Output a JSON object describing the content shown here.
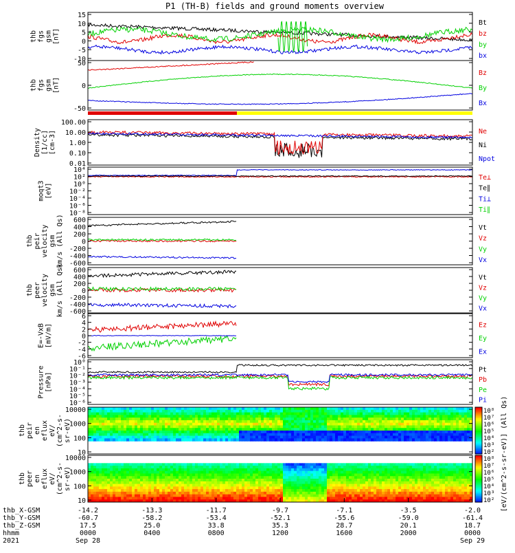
{
  "title": "P1 (TH-B) fields and ground moments overview",
  "colors": {
    "black": "#000000",
    "red": "#e00000",
    "green": "#00d000",
    "blue": "#0000e0",
    "yellow": "#ffff00"
  },
  "chart_data": [
    {
      "type": "line",
      "name": "fgs",
      "ylabel": [
        "thb",
        "fgs",
        "gsm",
        "[nT]"
      ],
      "ticks": [
        "15",
        "10",
        "5",
        "0",
        "-5",
        "-10"
      ],
      "ylim": [
        -10,
        15
      ],
      "legend": [
        {
          "label": "Bt",
          "color": "black"
        },
        {
          "label": "bz",
          "color": "red"
        },
        {
          "label": "by",
          "color": "green"
        },
        {
          "label": "bx",
          "color": "blue"
        }
      ]
    },
    {
      "type": "line",
      "name": "fgs-smooth",
      "ylabel": [
        "thb",
        "fgs",
        "gsm",
        "[nT]"
      ],
      "ticks": [
        "50",
        "0",
        "-50"
      ],
      "ylim": [
        -75,
        75
      ],
      "legend": [
        {
          "label": "Bz",
          "color": "red"
        },
        {
          "label": "By",
          "color": "green"
        },
        {
          "label": "Bx",
          "color": "blue"
        }
      ]
    },
    {
      "type": "line",
      "name": "density",
      "ylabel": [
        "Density",
        "[1/cc]",
        "[cm-3]"
      ],
      "ticks": [
        "100.00",
        "10.00",
        "1.00",
        "0.10",
        "0.01"
      ],
      "ylim": [
        0.003,
        300
      ],
      "log": true,
      "legend": [
        {
          "label": "Ne",
          "color": "red"
        },
        {
          "label": "Ni",
          "color": "black"
        },
        {
          "label": "Npot",
          "color": "blue"
        }
      ]
    },
    {
      "type": "line",
      "name": "temperature",
      "ylabel": [
        "moqt3",
        "[eV]"
      ],
      "ticks": [
        "10⁴",
        "10²",
        "10⁰",
        "10⁻²",
        "10⁻⁴",
        "10⁻⁶",
        "10⁻⁸"
      ],
      "ylim": [
        1e-09,
        100000.0
      ],
      "log": true,
      "legend": [
        {
          "label": "Te⊥",
          "color": "red"
        },
        {
          "label": "Te∥",
          "color": "black"
        },
        {
          "label": "Ti⊥",
          "color": "blue"
        },
        {
          "label": "Ti∥",
          "color": "green"
        }
      ]
    },
    {
      "type": "line",
      "name": "peir-velocity",
      "ylabel": [
        "thb",
        "peir",
        "velocity",
        "gsm",
        "km/s (All Qs)"
      ],
      "ticks": [
        "600",
        "400",
        "200",
        "0",
        "-200",
        "-400",
        "-600"
      ],
      "ylim": [
        -600,
        600
      ],
      "legend": [
        {
          "label": "Vt",
          "color": "black"
        },
        {
          "label": "Vz",
          "color": "red"
        },
        {
          "label": "Vy",
          "color": "green"
        },
        {
          "label": "Vx",
          "color": "blue"
        }
      ]
    },
    {
      "type": "line",
      "name": "peer-velocity",
      "ylabel": [
        "thb",
        "peer",
        "velocity",
        "gsm",
        "km/s (All Qs)"
      ],
      "ticks": [
        "600",
        "400",
        "200",
        "0",
        "-200",
        "-400",
        "-600"
      ],
      "ylim": [
        -600,
        600
      ],
      "legend": [
        {
          "label": "Vt",
          "color": "black"
        },
        {
          "label": "Vz",
          "color": "red"
        },
        {
          "label": "Vy",
          "color": "green"
        },
        {
          "label": "Vx",
          "color": "blue"
        }
      ]
    },
    {
      "type": "line",
      "name": "efield",
      "ylabel": [
        "E=-VxB",
        "[mV/m]"
      ],
      "ticks": [
        "6",
        "4",
        "2",
        "0",
        "-2",
        "-4",
        "-6"
      ],
      "ylim": [
        -6,
        6
      ],
      "legend": [
        {
          "label": "Ez",
          "color": "red"
        },
        {
          "label": "Ey",
          "color": "green"
        },
        {
          "label": "Ex",
          "color": "blue"
        }
      ]
    },
    {
      "type": "line",
      "name": "pressure",
      "ylabel": [
        "Pressure",
        "[nPa]"
      ],
      "ticks": [
        "10⁰",
        "10⁻¹",
        "10⁻²",
        "10⁻³",
        "10⁻⁴",
        "10⁻⁵",
        "10⁻⁶"
      ],
      "ylim": [
        1e-06,
        1
      ],
      "log": true,
      "legend": [
        {
          "label": "Pt",
          "color": "black"
        },
        {
          "label": "Pb",
          "color": "red"
        },
        {
          "label": "Pe",
          "color": "green"
        },
        {
          "label": "Pi",
          "color": "blue"
        }
      ]
    },
    {
      "type": "heatmap",
      "name": "peir-spectrogram",
      "ylabel": [
        "thb",
        "peir",
        "en",
        "eflux",
        "eV/",
        "(cm^2-s-",
        "sr-eV)"
      ],
      "ticks": [
        "10000",
        "1000",
        "100",
        "10"
      ],
      "ylim": [
        5,
        20000
      ],
      "log": true
    },
    {
      "type": "heatmap",
      "name": "peer-spectrogram",
      "ylabel": [
        "thb",
        "peer",
        "en",
        "eflux",
        "eV/",
        "(cm^2-s-",
        "sr-eV)"
      ],
      "ticks": [
        "10000",
        "1000",
        "100",
        "10"
      ],
      "ylim": [
        5,
        20000
      ],
      "log": true
    }
  ],
  "colorbar": {
    "label": "[eV/(cm^2-s-sr-eV)] (All Qs)",
    "ticks": [
      "10⁸",
      "10⁷",
      "10⁶",
      "10⁵",
      "10⁴",
      "10³",
      "10²"
    ]
  },
  "x_axis": {
    "rows": [
      {
        "name": "thb_X-GSM",
        "values": [
          "-14.2",
          "-13.3",
          "-11.7",
          "-9.7",
          "-7.1",
          "-3.5",
          "-2.0"
        ]
      },
      {
        "name": "thb_Y-GSM",
        "values": [
          "-60.7",
          "-58.2",
          "-53.4",
          "-52.1",
          "-55.6",
          "-59.0",
          "-61.4"
        ]
      },
      {
        "name": "thb_Z-GSM",
        "values": [
          "17.5",
          "25.0",
          "33.8",
          "35.3",
          "28.7",
          "20.1",
          "18.7"
        ]
      },
      {
        "name": "hhmm",
        "values": [
          "0000",
          "0400",
          "0800",
          "1200",
          "1600",
          "2000",
          "0000"
        ]
      }
    ],
    "year": "2021",
    "date_labels": [
      {
        "text": "Sep 28",
        "position": 0
      },
      {
        "text": "Sep 29",
        "position": 6
      }
    ]
  }
}
